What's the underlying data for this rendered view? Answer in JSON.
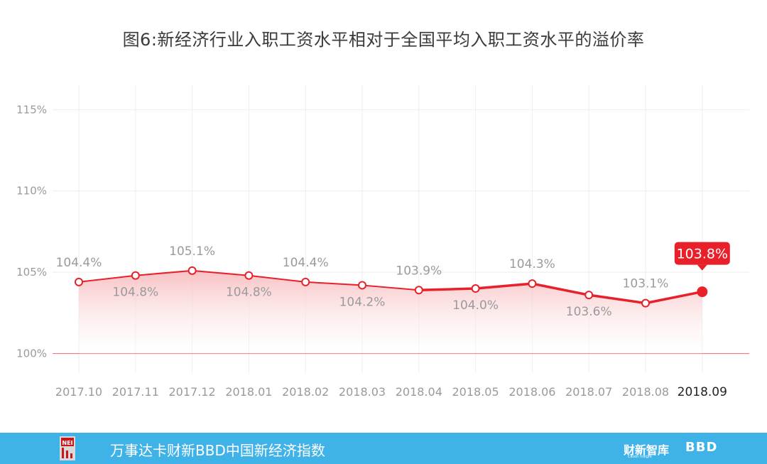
{
  "title": "图6:新经济行业入职工资水平相对于全国平均入职工资水平的溢价率",
  "chart_data": {
    "type": "area",
    "title": "图6:新经济行业入职工资水平相对于全国平均入职工资水平的溢价率",
    "xlabel": "",
    "ylabel": "",
    "categories": [
      "2017.10",
      "2017.11",
      "2017.12",
      "2018.01",
      "2018.02",
      "2018.03",
      "2018.04",
      "2018.05",
      "2018.06",
      "2018.07",
      "2018.08",
      "2018.09"
    ],
    "values": [
      104.4,
      104.8,
      105.1,
      104.8,
      104.4,
      104.2,
      103.9,
      104.0,
      104.3,
      103.6,
      103.1,
      103.8
    ],
    "data_labels": [
      "104.4%",
      "104.8%",
      "105.1%",
      "104.8%",
      "104.4%",
      "104.2%",
      "103.9%",
      "104.0%",
      "104.3%",
      "103.6%",
      "103.1%",
      "103.8%"
    ],
    "yticks": [
      100,
      105,
      110,
      115
    ],
    "ytick_labels": [
      "100%",
      "105%",
      "110%",
      "115%"
    ],
    "ylim": [
      98.8,
      116.5
    ],
    "grid": true,
    "highlight_last": true,
    "colors": {
      "line": "#e8202a",
      "fill_top": "#f9c6c8",
      "baseline": "#e8202a",
      "grid": "#eeeeee",
      "label": "#9a9a9a"
    }
  },
  "footer": {
    "index_name": "万事达卡财新BBD中国新经济指数",
    "brand1": "财新智库",
    "brand1_sub": "Caixin Insight",
    "brand2": "BBD",
    "background": "#3fb2e7"
  }
}
